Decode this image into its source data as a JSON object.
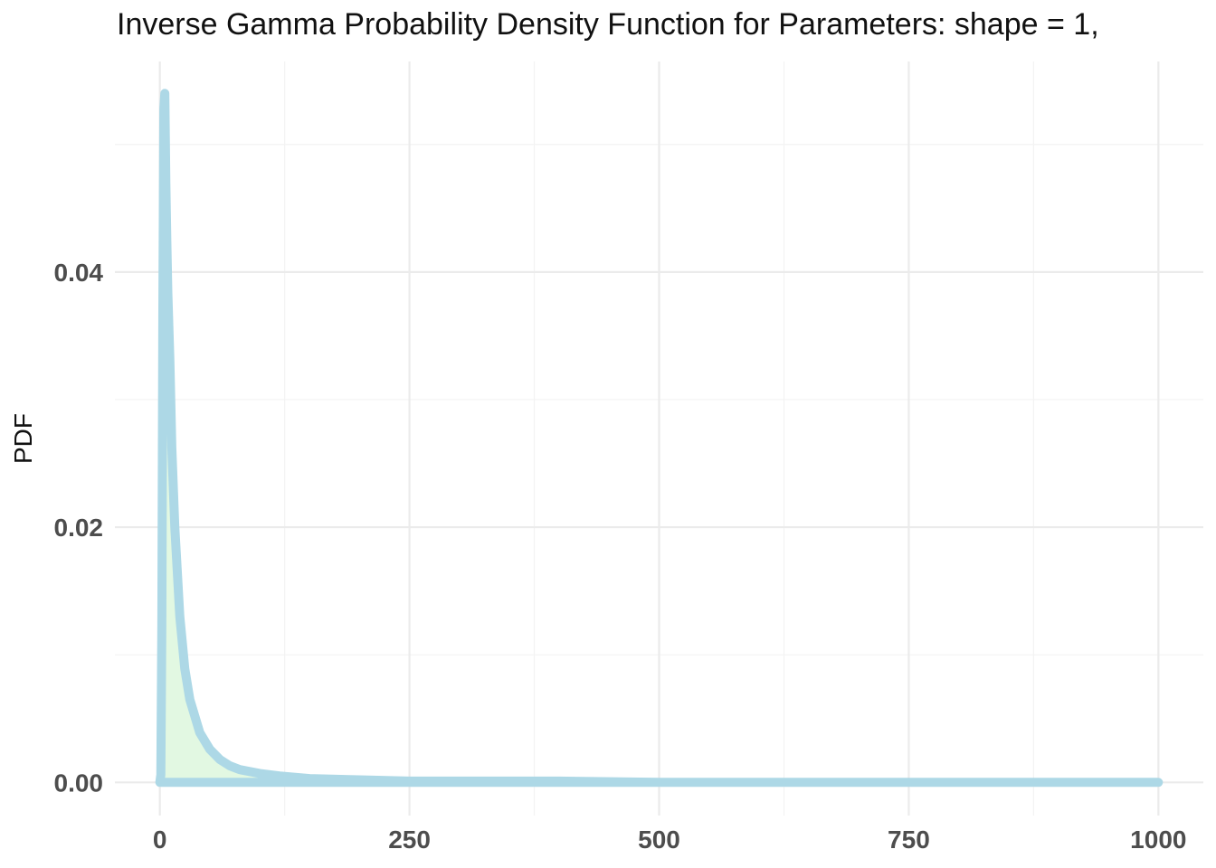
{
  "chart_data": {
    "type": "area",
    "title": "Inverse Gamma Probability Density Function for Parameters: shape = 1,",
    "xlabel": "",
    "ylabel": "PDF",
    "xlim": [
      -45,
      1045
    ],
    "ylim": [
      -0.0026,
      0.0565
    ],
    "x_ticks": [
      0,
      250,
      500,
      750,
      1000
    ],
    "x_tick_labels": [
      "0",
      "250",
      "500",
      "750",
      "1000"
    ],
    "y_ticks": [
      0.0,
      0.02,
      0.04
    ],
    "y_tick_labels": [
      "0.00",
      "0.02",
      "0.04"
    ],
    "grid": true,
    "legend": "none",
    "series": [
      {
        "x": [
          0,
          1,
          2,
          3,
          4,
          5,
          6,
          7,
          8,
          10,
          12,
          15,
          20,
          25,
          30,
          40,
          50,
          60,
          70,
          80,
          100,
          120,
          150,
          200,
          250,
          300,
          400,
          500,
          600,
          700,
          800,
          900,
          1000
        ],
        "y": [
          0,
          0.0006,
          0.0123,
          0.0367,
          0.0528,
          0.054,
          0.047,
          0.0424,
          0.0384,
          0.0332,
          0.0262,
          0.02,
          0.013,
          0.0089,
          0.0065,
          0.0039,
          0.0026,
          0.0018,
          0.0013,
          0.001,
          0.0007,
          0.0005,
          0.0003,
          0.0002,
          0.0001,
          0.0001,
          0.0001,
          0.0,
          0.0,
          0.0,
          0.0,
          0.0,
          0.0
        ]
      }
    ],
    "colors": {
      "line": "#add8e6",
      "fill": "#e2f8e2",
      "grid_major": "#ebebeb",
      "grid_minor": "#f3f3f3",
      "tick_text": "#4d4d4d"
    }
  }
}
